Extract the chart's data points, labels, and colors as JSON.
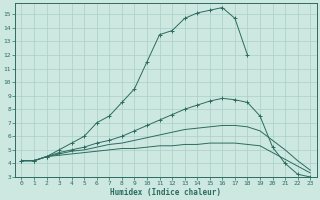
{
  "xlabel": "Humidex (Indice chaleur)",
  "bg_color": "#cce8e0",
  "grid_color": "#aacfc8",
  "line_color": "#2d6b60",
  "xlim": [
    -0.5,
    23.5
  ],
  "ylim": [
    3,
    15.8
  ],
  "yticks": [
    3,
    4,
    5,
    6,
    7,
    8,
    9,
    10,
    11,
    12,
    13,
    14,
    15
  ],
  "xticks": [
    0,
    1,
    2,
    3,
    4,
    5,
    6,
    7,
    8,
    9,
    10,
    11,
    12,
    13,
    14,
    15,
    16,
    17,
    18,
    19,
    20,
    21,
    22,
    23
  ],
  "series": [
    {
      "x": [
        0,
        1,
        2,
        3,
        4,
        5,
        6,
        7,
        8,
        9,
        10,
        11,
        12,
        13,
        14,
        15,
        16,
        17,
        18
      ],
      "y": [
        4.2,
        4.2,
        4.5,
        5.0,
        5.5,
        6.0,
        7.0,
        7.5,
        8.5,
        9.5,
        11.5,
        13.5,
        13.8,
        14.7,
        15.1,
        15.3,
        15.5,
        14.7,
        12.0
      ],
      "marker": "+"
    },
    {
      "x": [
        0,
        1,
        2,
        3,
        4,
        5,
        6,
        7,
        8,
        9,
        10,
        11,
        12,
        13,
        14,
        15,
        16,
        17,
        18,
        19,
        20,
        21,
        22,
        23
      ],
      "y": [
        4.2,
        4.2,
        4.5,
        4.8,
        5.0,
        5.2,
        5.5,
        5.7,
        6.0,
        6.4,
        6.8,
        7.2,
        7.6,
        8.0,
        8.3,
        8.6,
        8.8,
        8.7,
        8.5,
        7.5,
        5.2,
        4.0,
        3.2,
        3.0
      ],
      "marker": "+"
    },
    {
      "x": [
        0,
        1,
        2,
        3,
        4,
        5,
        6,
        7,
        8,
        9,
        10,
        11,
        12,
        13,
        14,
        15,
        16,
        17,
        18,
        19,
        20,
        21,
        22,
        23
      ],
      "y": [
        4.2,
        4.2,
        4.5,
        4.7,
        4.9,
        5.0,
        5.2,
        5.4,
        5.5,
        5.7,
        5.9,
        6.1,
        6.3,
        6.5,
        6.6,
        6.7,
        6.8,
        6.8,
        6.7,
        6.4,
        5.7,
        5.0,
        4.2,
        3.5
      ],
      "marker": null
    },
    {
      "x": [
        0,
        1,
        2,
        3,
        4,
        5,
        6,
        7,
        8,
        9,
        10,
        11,
        12,
        13,
        14,
        15,
        16,
        17,
        18,
        19,
        20,
        21,
        22,
        23
      ],
      "y": [
        4.2,
        4.2,
        4.5,
        4.6,
        4.7,
        4.8,
        4.9,
        5.0,
        5.1,
        5.1,
        5.2,
        5.3,
        5.3,
        5.4,
        5.4,
        5.5,
        5.5,
        5.5,
        5.4,
        5.3,
        4.8,
        4.3,
        3.8,
        3.3
      ],
      "marker": null
    }
  ]
}
